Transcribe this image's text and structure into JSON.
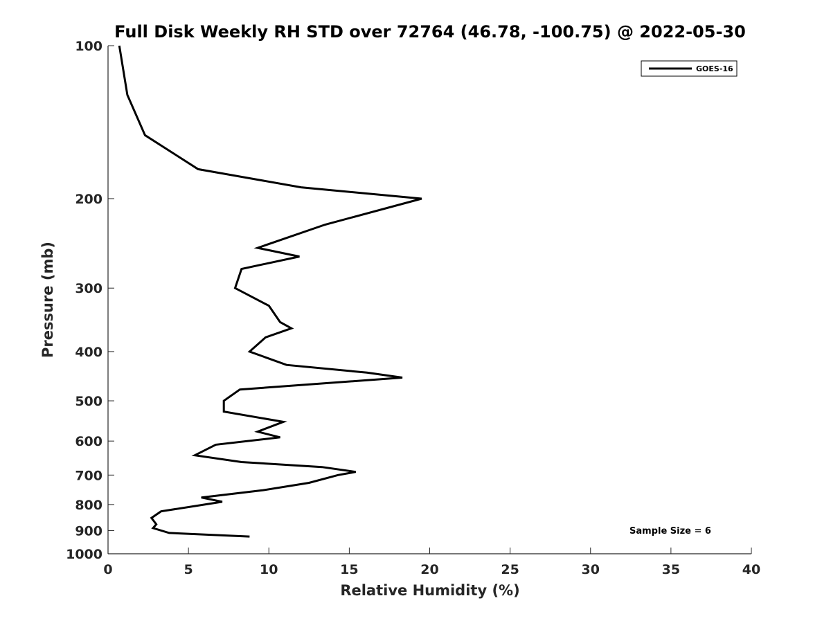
{
  "chart_data": {
    "type": "line",
    "title": "Full Disk Weekly RH STD over 72764 (46.78, -100.75) @ 2022-05-30",
    "xlabel": "Relative Humidity (%)",
    "ylabel": "Pressure (mb)",
    "xlim": [
      0,
      40
    ],
    "ylim": [
      100,
      1000
    ],
    "yscale": "log",
    "yreversed": true,
    "xticks": [
      0,
      5,
      10,
      15,
      20,
      25,
      30,
      35,
      40
    ],
    "xtick_labels": [
      "0",
      "5",
      "10",
      "15",
      "20",
      "25",
      "30",
      "35",
      "40"
    ],
    "yticks": [
      100,
      200,
      300,
      400,
      500,
      600,
      700,
      800,
      900,
      1000
    ],
    "ytick_labels": [
      "100",
      "200",
      "300",
      "400",
      "500",
      "600",
      "700",
      "800",
      "900",
      "1000"
    ],
    "grid": false,
    "legend_position": "top-right",
    "annotation": "Sample Size = 6",
    "series": [
      {
        "name": "GOES-16",
        "color": "#000000",
        "points": [
          [
            0.7,
            100
          ],
          [
            1.2,
            125
          ],
          [
            2.3,
            150
          ],
          [
            5.6,
            175
          ],
          [
            12.0,
            190
          ],
          [
            19.5,
            200
          ],
          [
            13.5,
            225
          ],
          [
            9.3,
            250
          ],
          [
            11.9,
            260
          ],
          [
            8.3,
            275
          ],
          [
            7.9,
            300
          ],
          [
            10.0,
            325
          ],
          [
            10.7,
            350
          ],
          [
            11.4,
            360
          ],
          [
            9.8,
            375
          ],
          [
            8.8,
            400
          ],
          [
            11.1,
            425
          ],
          [
            16.1,
            440
          ],
          [
            18.3,
            450
          ],
          [
            8.2,
            475
          ],
          [
            7.2,
            500
          ],
          [
            7.2,
            525
          ],
          [
            10.9,
            550
          ],
          [
            9.3,
            575
          ],
          [
            10.7,
            590
          ],
          [
            6.7,
            610
          ],
          [
            5.4,
            640
          ],
          [
            8.3,
            660
          ],
          [
            13.3,
            675
          ],
          [
            15.4,
            690
          ],
          [
            14.3,
            700
          ],
          [
            12.5,
            725
          ],
          [
            9.6,
            750
          ],
          [
            5.8,
            775
          ],
          [
            7.1,
            790
          ],
          [
            3.3,
            825
          ],
          [
            2.7,
            850
          ],
          [
            3.0,
            875
          ],
          [
            2.8,
            890
          ],
          [
            3.8,
            910
          ],
          [
            8.8,
            925
          ]
        ]
      }
    ]
  }
}
